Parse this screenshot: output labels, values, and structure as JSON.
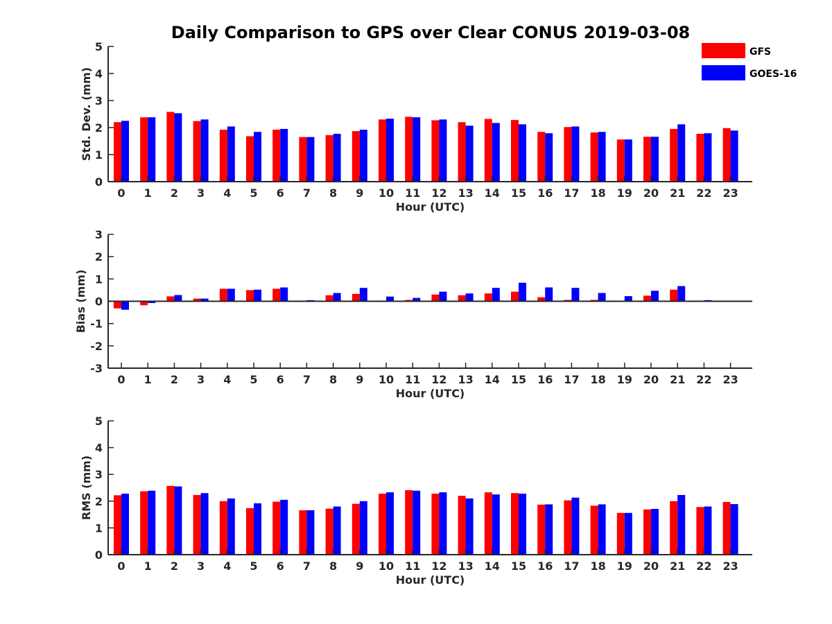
{
  "chart_data": {
    "type": "bar",
    "title": "Daily Comparison to GPS over Clear CONUS 2019-03-08",
    "categories": [
      "0",
      "1",
      "2",
      "3",
      "4",
      "5",
      "6",
      "7",
      "8",
      "9",
      "10",
      "11",
      "12",
      "13",
      "14",
      "15",
      "16",
      "17",
      "18",
      "19",
      "20",
      "21",
      "22",
      "23"
    ],
    "legend": {
      "position": "top-right",
      "entries": [
        {
          "name": "GFS",
          "color": "#ff0000"
        },
        {
          "name": "GOES-16",
          "color": "#0000ff"
        }
      ]
    },
    "panels": [
      {
        "id": "std",
        "ylabel": "Std. Dev. (mm)",
        "xlabel": "Hour (UTC)",
        "ylim": [
          0,
          5
        ],
        "yticks": [
          "0",
          "1",
          "2",
          "3",
          "4",
          "5"
        ],
        "series": [
          {
            "name": "GFS",
            "color": "#ff0000",
            "values": [
              2.2,
              2.38,
              2.58,
              2.24,
              1.92,
              1.68,
              1.92,
              1.65,
              1.72,
              1.87,
              2.3,
              2.4,
              2.27,
              2.2,
              2.32,
              2.28,
              1.84,
              2.02,
              1.82,
              1.56,
              1.66,
              1.95,
              1.77,
              1.98
            ]
          },
          {
            "name": "GOES-16",
            "color": "#0000ff",
            "values": [
              2.25,
              2.38,
              2.53,
              2.3,
              2.04,
              1.84,
              1.95,
              1.65,
              1.77,
              1.92,
              2.33,
              2.38,
              2.3,
              2.07,
              2.17,
              2.12,
              1.79,
              2.04,
              1.84,
              1.56,
              1.66,
              2.12,
              1.79,
              1.89
            ]
          }
        ]
      },
      {
        "id": "bias",
        "ylabel": "Bias (mm)",
        "xlabel": "Hour (UTC)",
        "ylim": [
          -3,
          3
        ],
        "yticks": [
          "-3",
          "-2",
          "-1",
          "0",
          "1",
          "2",
          "3"
        ],
        "series": [
          {
            "name": "GFS",
            "color": "#ff0000",
            "values": [
              -0.32,
              -0.18,
              0.22,
              0.12,
              0.56,
              0.5,
              0.56,
              0.0,
              0.27,
              0.33,
              0.0,
              0.06,
              0.3,
              0.27,
              0.35,
              0.43,
              0.18,
              0.06,
              0.06,
              -0.03,
              0.25,
              0.52,
              -0.03,
              -0.03
            ]
          },
          {
            "name": "GOES-16",
            "color": "#0000ff",
            "values": [
              -0.38,
              -0.08,
              0.28,
              0.12,
              0.56,
              0.52,
              0.62,
              0.05,
              0.37,
              0.6,
              0.21,
              0.15,
              0.43,
              0.35,
              0.6,
              0.83,
              0.62,
              0.6,
              0.37,
              0.23,
              0.47,
              0.68,
              0.05,
              -0.03
            ]
          }
        ]
      },
      {
        "id": "rms",
        "ylabel": "RMS (mm)",
        "xlabel": "Hour (UTC)",
        "ylim": [
          0,
          5
        ],
        "yticks": [
          "0",
          "1",
          "2",
          "3",
          "4",
          "5"
        ],
        "series": [
          {
            "name": "GFS",
            "color": "#ff0000",
            "values": [
              2.22,
              2.37,
              2.57,
              2.23,
              2.0,
              1.74,
              1.98,
              1.66,
              1.72,
              1.9,
              2.28,
              2.41,
              2.28,
              2.2,
              2.33,
              2.3,
              1.87,
              2.03,
              1.83,
              1.56,
              1.69,
              2.0,
              1.78,
              1.97
            ]
          },
          {
            "name": "GOES-16",
            "color": "#0000ff",
            "values": [
              2.28,
              2.39,
              2.55,
              2.3,
              2.1,
              1.92,
              2.05,
              1.66,
              1.8,
              2.0,
              2.33,
              2.39,
              2.33,
              2.1,
              2.25,
              2.28,
              1.88,
              2.13,
              1.88,
              1.56,
              1.71,
              2.23,
              1.8,
              1.89
            ]
          }
        ]
      }
    ]
  }
}
